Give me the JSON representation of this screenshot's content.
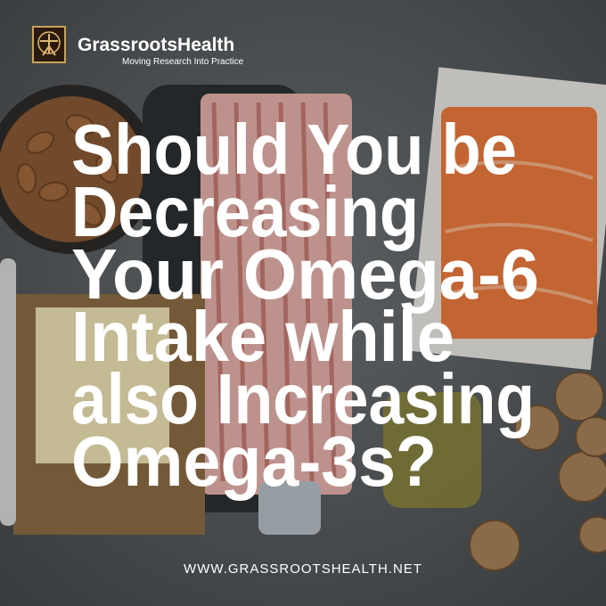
{
  "logo": {
    "name": "GrassrootsHealth",
    "tagline": "Moving Research Into Practice"
  },
  "headline": {
    "lines": [
      "Should You be",
      "Decreasing",
      "Your Omega-6",
      "Intake while",
      "also Increasing",
      "Omega-3s?"
    ]
  },
  "footer": {
    "url": "WWW.GRASSROOTSHEALTH.NET"
  }
}
